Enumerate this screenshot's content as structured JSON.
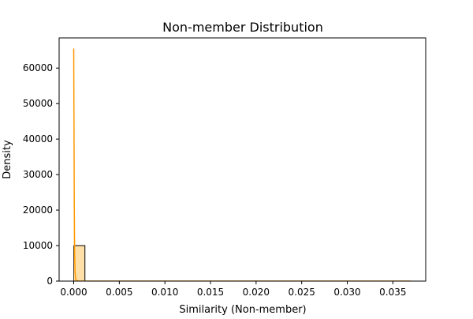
{
  "chart_data": {
    "type": "histogram",
    "title": "Non-member Distribution",
    "xlabel": "Similarity (Non-member)",
    "ylabel": "Density",
    "xlim": [
      -0.0016,
      0.0386
    ],
    "ylim": [
      0,
      68500
    ],
    "x_ticks": [
      0.0,
      0.005,
      0.01,
      0.015,
      0.02,
      0.025,
      0.03,
      0.035
    ],
    "x_tick_labels": [
      "0.000",
      "0.005",
      "0.010",
      "0.015",
      "0.020",
      "0.025",
      "0.030",
      "0.035"
    ],
    "y_ticks": [
      0,
      10000,
      20000,
      30000,
      40000,
      50000,
      60000
    ],
    "y_tick_labels": [
      "0",
      "10000",
      "20000",
      "30000",
      "40000",
      "50000",
      "60000"
    ],
    "grid": false,
    "colors": {
      "bar_fill": "#ffe0a8",
      "bar_edge": "#000000",
      "kde_line": "#ff9900",
      "kde_fill": "#ffd699"
    },
    "bins": {
      "edges": [
        0.0,
        0.00123,
        0.00247,
        0.0037,
        0.00493,
        0.00617,
        0.0074,
        0.00863,
        0.00987,
        0.0111,
        0.01233,
        0.01357,
        0.0148,
        0.01603,
        0.01727,
        0.0185,
        0.01973,
        0.02097,
        0.0222,
        0.02343,
        0.02467,
        0.0259,
        0.02713,
        0.02837,
        0.0296,
        0.03083,
        0.03207,
        0.0333,
        0.03453,
        0.03577,
        0.037
      ],
      "values": [
        10000,
        0,
        0,
        0,
        0,
        0,
        0,
        0,
        0,
        0,
        0,
        0,
        0,
        0,
        0,
        0,
        0,
        0,
        0,
        0,
        0,
        0,
        0,
        0,
        0,
        0,
        0,
        0,
        0,
        0
      ]
    },
    "kde": {
      "x": [
        0.0,
        3e-05,
        6e-05,
        0.0001,
        0.00015,
        0.0002,
        0.0003,
        0.0005,
        0.0008,
        0.0012,
        0.002,
        0.005,
        0.01,
        0.02,
        0.03,
        0.037
      ],
      "y": [
        65500,
        45000,
        22000,
        8000,
        2500,
        800,
        150,
        20,
        3,
        0,
        0,
        0,
        0,
        0,
        0,
        0
      ]
    }
  }
}
